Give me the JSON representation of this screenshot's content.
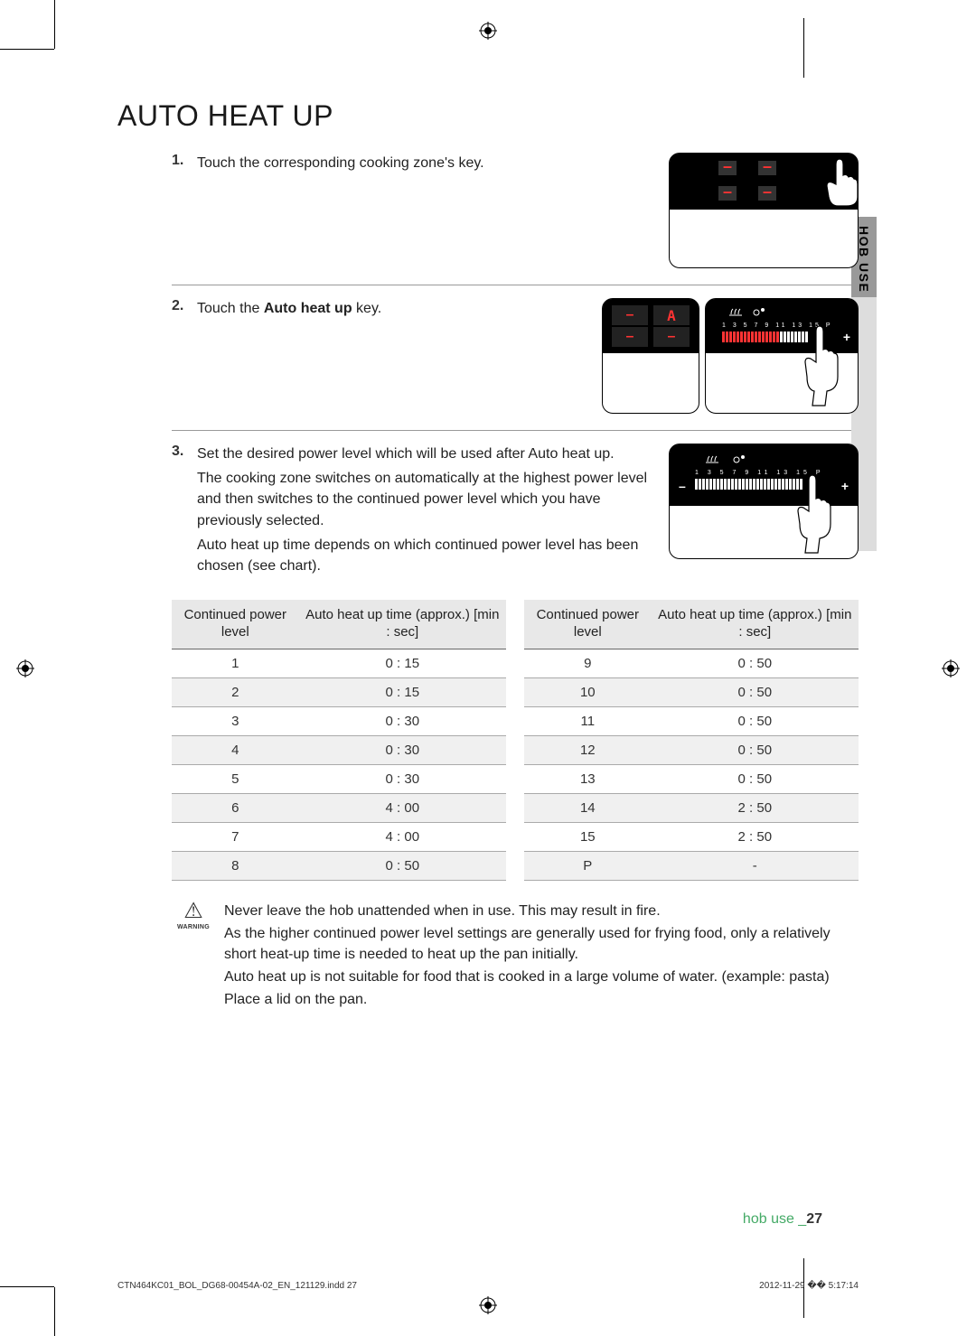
{
  "title": "AUTO HEAT UP",
  "side_tab": "HOB USE",
  "steps": {
    "s1": {
      "num": "1.",
      "text": "Touch the corresponding cooking zone's key."
    },
    "s2": {
      "num": "2.",
      "prefix": "Touch the ",
      "bold": "Auto heat up",
      "suffix": " key."
    },
    "s3": {
      "num": "3.",
      "p1": "Set the desired power level which will be used after Auto heat up.",
      "p2": "The cooking zone switches on automatically at the highest power level and then switches to the continued power level which you have previously selected.",
      "p3": "Auto heat up time depends on which continued power level has been chosen (see chart)."
    }
  },
  "table": {
    "col1": "Continued power level",
    "col2": "Auto heat up time (approx.) [min : sec]",
    "left": [
      {
        "lvl": "1",
        "time": "0 : 15"
      },
      {
        "lvl": "2",
        "time": "0 : 15"
      },
      {
        "lvl": "3",
        "time": "0 : 30"
      },
      {
        "lvl": "4",
        "time": "0 : 30"
      },
      {
        "lvl": "5",
        "time": "0 : 30"
      },
      {
        "lvl": "6",
        "time": "4 : 00"
      },
      {
        "lvl": "7",
        "time": "4 : 00"
      },
      {
        "lvl": "8",
        "time": "0 : 50"
      }
    ],
    "right": [
      {
        "lvl": "9",
        "time": "0 : 50"
      },
      {
        "lvl": "10",
        "time": "0 : 50"
      },
      {
        "lvl": "11",
        "time": "0 : 50"
      },
      {
        "lvl": "12",
        "time": "0 : 50"
      },
      {
        "lvl": "13",
        "time": "0 : 50"
      },
      {
        "lvl": "14",
        "time": "2 : 50"
      },
      {
        "lvl": "15",
        "time": "2 : 50"
      },
      {
        "lvl": "P",
        "time": "-"
      }
    ]
  },
  "warning": {
    "label": "WARNING",
    "p1": "Never leave the hob unattended when in use. This may result in fire.",
    "p2": "As the higher continued power level settings are generally used for frying food, only a relatively short heat-up time is needed to heat up the pan initially.",
    "p3": "Auto heat up is not suitable for food that is cooked in a large volume of water. (example: pasta)",
    "p4": "Place a lid on the pan."
  },
  "footer": {
    "section": "hob use _",
    "page": "27"
  },
  "indd": {
    "left": "CTN464KC01_BOL_DG68-00454A-02_EN_121129.indd   27",
    "right": "2012-11-29   �� 5:17:14"
  },
  "slider": {
    "labels": "1  3  5  7  9  11 13 15  P"
  }
}
